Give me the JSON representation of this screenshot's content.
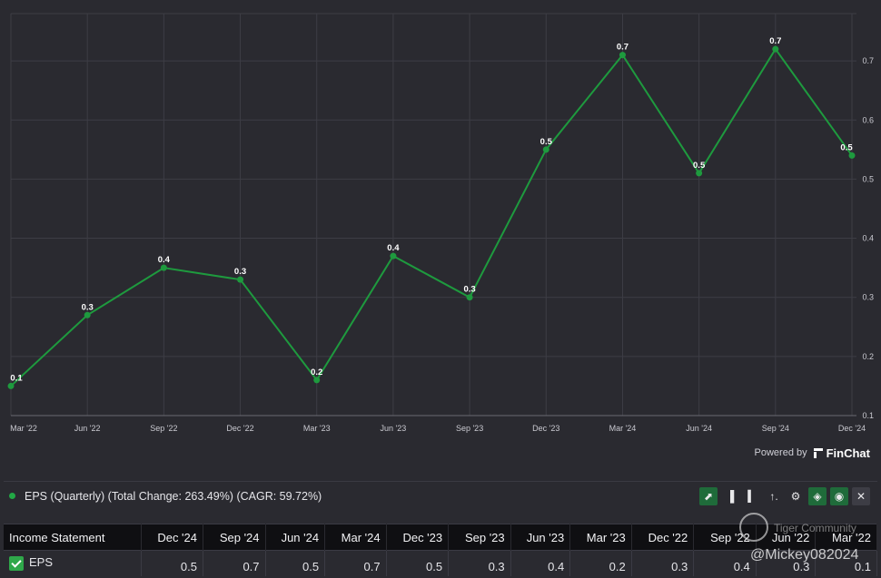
{
  "chart_data": {
    "type": "line",
    "categories": [
      "Mar '22",
      "Jun '22",
      "Sep '22",
      "Dec '22",
      "Mar '23",
      "Jun '23",
      "Sep '23",
      "Dec '23",
      "Mar '24",
      "Jun '24",
      "Sep '24",
      "Dec '24"
    ],
    "series": [
      {
        "name": "EPS (Quarterly)",
        "values": [
          0.15,
          0.27,
          0.35,
          0.33,
          0.16,
          0.37,
          0.3,
          0.55,
          0.71,
          0.51,
          0.72,
          0.54
        ],
        "labels": [
          "0.1",
          "0.3",
          "0.4",
          "0.3",
          "0.2",
          "0.4",
          "0.3",
          "0.5",
          "0.7",
          "0.5",
          "0.7",
          "0.5"
        ],
        "color": "#1e9a3e"
      }
    ],
    "yticks": [
      "0.1",
      "0.2",
      "0.3",
      "0.4",
      "0.5",
      "0.6",
      "0.7"
    ],
    "ylim": [
      0.1,
      0.78
    ],
    "grid": true,
    "colors": {
      "grid": "#3d3d45",
      "axis_text": "#c9c9d0",
      "label": "#ffffff"
    }
  },
  "branding": {
    "powered_by": "Powered by",
    "name": "FinChat"
  },
  "legend": {
    "text": "EPS (Quarterly) (Total Change: 263.49%) (CAGR: 59.72%)",
    "color": "#22a845"
  },
  "toolbar": [
    {
      "name": "line-chart-icon",
      "glyph": "⬈",
      "style": "green"
    },
    {
      "name": "bar-chart-icon",
      "glyph": "▐",
      "style": ""
    },
    {
      "name": "stacked-bar-icon",
      "glyph": "▍",
      "style": ""
    },
    {
      "name": "sort-icon",
      "glyph": "↑.",
      "style": ""
    },
    {
      "name": "settings-icon",
      "glyph": "⚙",
      "style": ""
    },
    {
      "name": "tag-icon",
      "glyph": "◈",
      "style": "green"
    },
    {
      "name": "eye-icon",
      "glyph": "◉",
      "style": "green"
    },
    {
      "name": "close-icon",
      "glyph": "✕",
      "style": "gray"
    }
  ],
  "table": {
    "header_label": "Income Statement",
    "columns": [
      "Dec '24",
      "Sep '24",
      "Jun '24",
      "Mar '24",
      "Dec '23",
      "Sep '23",
      "Jun '23",
      "Mar '23",
      "Dec '22",
      "Sep '22",
      "Jun '22",
      "Mar '22"
    ],
    "rows": [
      {
        "label": "EPS",
        "values": [
          "0.5",
          "0.7",
          "0.5",
          "0.7",
          "0.5",
          "0.3",
          "0.4",
          "0.2",
          "0.3",
          "0.4",
          "0.3",
          "0.1"
        ]
      }
    ]
  },
  "watermark": {
    "brand": "Tiger Community",
    "handle": "@Mickey082024"
  }
}
